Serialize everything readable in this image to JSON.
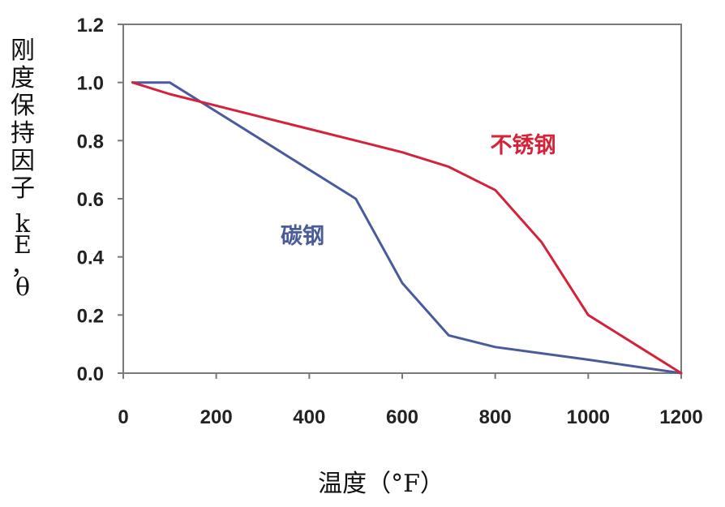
{
  "chart_data": {
    "type": "line",
    "xlabel": "温度（°F）",
    "ylabel": "刚度保持因子 kE，θ",
    "xlim": [
      0,
      1200
    ],
    "ylim": [
      0,
      1.2
    ],
    "xticks": [
      0,
      200,
      400,
      600,
      800,
      1000,
      1200
    ],
    "xtick_labels": [
      "0",
      "200",
      "400",
      "600",
      "800",
      "1000",
      "1200"
    ],
    "yticks": [
      0,
      0.2,
      0.4,
      0.6,
      0.8,
      1.0,
      1.2
    ],
    "ytick_labels": [
      "0.0",
      "0.2",
      "0.4",
      "0.6",
      "0.8",
      "1.0",
      "1.2"
    ],
    "grid": false,
    "series": [
      {
        "name": "碳钢",
        "color": "#4a5b9c",
        "x": [
          20,
          100,
          200,
          300,
          400,
          500,
          600,
          700,
          800,
          1000,
          1200
        ],
        "y": [
          1.0,
          1.0,
          0.9,
          0.8,
          0.7,
          0.6,
          0.31,
          0.13,
          0.09,
          0.0464,
          0.0
        ]
      },
      {
        "name": "不锈钢",
        "color": "#d2233a",
        "x": [
          20,
          100,
          200,
          300,
          400,
          500,
          600,
          700,
          800,
          900,
          1000,
          1100,
          1200
        ],
        "y": [
          1.0,
          0.96,
          0.92,
          0.88,
          0.84,
          0.8,
          0.76,
          0.71,
          0.63,
          0.45,
          0.2,
          0.1,
          0.0
        ]
      }
    ]
  }
}
